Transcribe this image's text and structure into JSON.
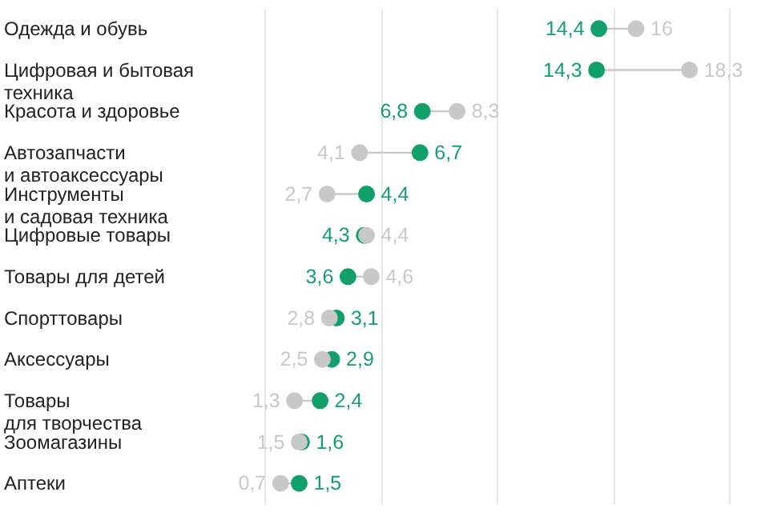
{
  "chart_data": {
    "type": "scatter",
    "orientation": "horizontal",
    "categories": [
      "Одежда и обувь",
      "Цифровая и бытовая\nтехника",
      "Красота и здоровье",
      "Автозапчасти\nи автоаксессуары",
      "Инструменты\nи садовая техника",
      "Цифровые товары",
      "Товары для детей",
      "Спорттовары",
      "Аксессуары",
      "Товары\nдля творчества",
      "Зоомагазины",
      "Аптеки"
    ],
    "series": [
      {
        "color": "#12a06a",
        "values": [
          14.4,
          14.3,
          6.8,
          6.7,
          4.4,
          4.3,
          3.6,
          3.1,
          2.9,
          2.4,
          1.6,
          1.5
        ],
        "value_labels": [
          "14,4",
          "14,3",
          "6,8",
          "6,7",
          "4,4",
          "4,3",
          "3,6",
          "3,1",
          "2,9",
          "2,4",
          "1,6",
          "1,5"
        ]
      },
      {
        "color": "#c8c8c8",
        "values": [
          16,
          18.3,
          8.3,
          4.1,
          2.7,
          4.4,
          4.6,
          2.8,
          2.5,
          1.3,
          1.5,
          0.7
        ],
        "value_labels": [
          "16",
          "18,3",
          "8,3",
          "4,1",
          "2,7",
          "4,4",
          "4,6",
          "2,8",
          "2,5",
          "1,3",
          "1,5",
          "0,7"
        ]
      }
    ],
    "xlim": [
      0,
      20
    ],
    "xticks": [
      0,
      5,
      10,
      15,
      20
    ],
    "grid": "x",
    "tick_labels": "y",
    "marker": "circle"
  }
}
